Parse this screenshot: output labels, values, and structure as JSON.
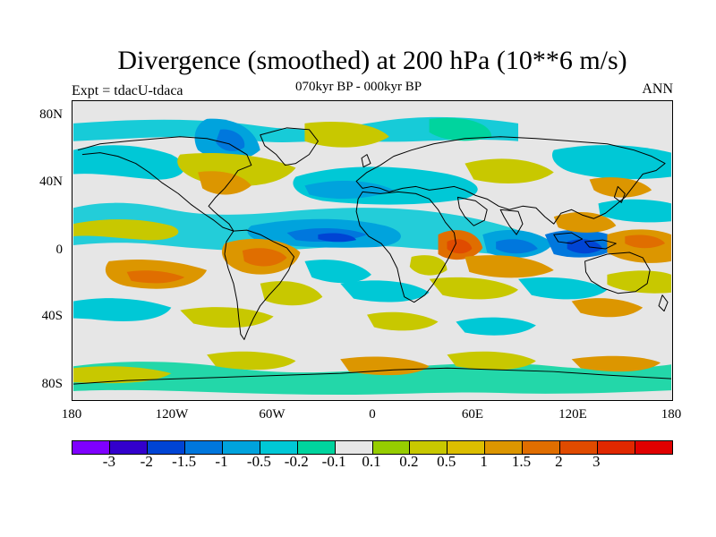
{
  "figure": {
    "title": "Divergence (smoothed) at 200 hPa (10**6 m/s)",
    "subtitle": "070kyr BP - 000kyr BP",
    "left_label": "Expt = tdacU-tdaca",
    "right_label": "ANN"
  },
  "axes": {
    "y_ticks": [
      "80N",
      "40N",
      "0",
      "40S",
      "80S"
    ],
    "x_ticks": [
      "180",
      "120W",
      "60W",
      "0",
      "60E",
      "120E",
      "180"
    ]
  },
  "colorbar": {
    "colors": [
      "#7f00ff",
      "#3300cc",
      "#0044d4",
      "#0077dd",
      "#00a3dd",
      "#00c8d6",
      "#00d49e",
      "#e6e6e6",
      "#96cd00",
      "#c8c800",
      "#dcbe00",
      "#dc9600",
      "#e06e00",
      "#e04b00",
      "#e02800",
      "#e00000"
    ],
    "labels": [
      "-3",
      "-2",
      "-1.5",
      "-1",
      "-0.5",
      "-0.2",
      "-0.1",
      "0.1",
      "0.2",
      "0.5",
      "1",
      "1.5",
      "2",
      "3"
    ]
  },
  "chart_data": {
    "type": "heatmap",
    "title": "Divergence (smoothed) at 200 hPa (10**6 m/s)",
    "subtitle": "070kyr BP - 000kyr BP",
    "variable": "divergence at 200 hPa",
    "units": "10**6 m/s",
    "x_range": [
      -180,
      180
    ],
    "y_range": [
      -90,
      90
    ],
    "contour_levels": [
      -3,
      -2,
      -1.5,
      -1,
      -0.5,
      -0.2,
      -0.1,
      0.1,
      0.2,
      0.5,
      1,
      1.5,
      2,
      3
    ],
    "features": [
      {
        "name": "Tropical Atlantic convergence band",
        "lon": -20,
        "lat": 5,
        "value": -1.5
      },
      {
        "name": "Equatorial Indian Ocean convergence",
        "lon": 80,
        "lat": 0,
        "value": -1.5
      },
      {
        "name": "Maritime Continent convergence",
        "lon": 115,
        "lat": -3,
        "value": -2
      },
      {
        "name": "Equatorial East Africa divergence",
        "lon": 50,
        "lat": 2,
        "value": 2
      },
      {
        "name": "Tropical South America divergence",
        "lon": -65,
        "lat": -3,
        "value": 1
      },
      {
        "name": "Western Pacific divergence",
        "lon": 135,
        "lat": 2,
        "value": 1
      },
      {
        "name": "Southeast Pacific divergence",
        "lon": -130,
        "lat": -20,
        "value": 1
      },
      {
        "name": "North Atlantic / Greenland convergence",
        "lon": -40,
        "lat": 60,
        "value": -0.5
      }
    ]
  }
}
